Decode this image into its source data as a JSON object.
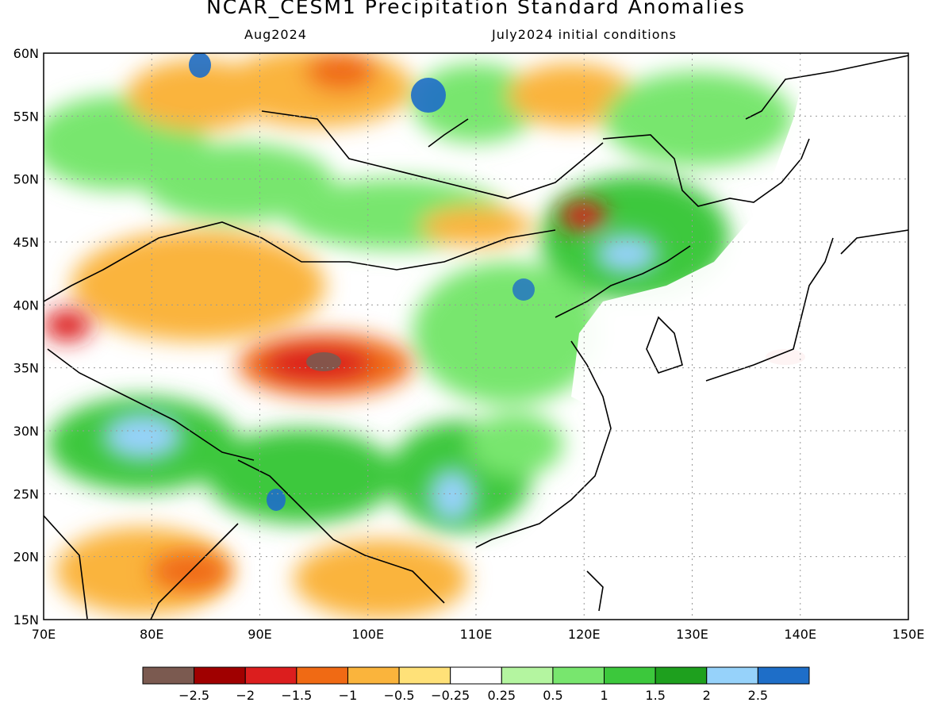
{
  "title": "NCAR_CESM1 Precipitation Standard Anomalies",
  "subtitle_left": "Aug2024",
  "subtitle_right": "July2024 initial conditions",
  "map": {
    "lon_range": [
      70,
      150
    ],
    "lat_range": [
      15,
      60
    ],
    "lon_ticks": [
      "70E",
      "80E",
      "90E",
      "100E",
      "110E",
      "120E",
      "130E",
      "140E",
      "150E"
    ],
    "lat_ticks": [
      "15N",
      "20N",
      "25N",
      "30N",
      "35N",
      "40N",
      "45N",
      "50N",
      "55N",
      "60N"
    ],
    "grid": "dotted",
    "regions": [
      {
        "name": "tibet-dry-core",
        "lon": 96,
        "lat": 35.3,
        "value": -2.7
      },
      {
        "name": "tibet-dry",
        "lon": 98,
        "lat": 35.5,
        "value": -2.1
      },
      {
        "name": "northern-india-wet",
        "lon": 83,
        "lat": 29.5,
        "value": 2.2
      },
      {
        "name": "bangladesh-wet",
        "lon": 91,
        "lat": 24.5,
        "value": 2.6
      },
      {
        "name": "south-china-wet",
        "lon": 108,
        "lat": 25,
        "value": 2.1
      },
      {
        "name": "northeast-china-wet",
        "lon": 126,
        "lat": 46,
        "value": 2.1
      },
      {
        "name": "inner-mongolia-dry",
        "lon": 120,
        "lat": 47,
        "value": -2
      },
      {
        "name": "siberia-dry",
        "lon": 97,
        "lat": 58,
        "value": -1.8
      },
      {
        "name": "baikal-wet",
        "lon": 106,
        "lat": 56,
        "value": 2.6
      },
      {
        "name": "kazakhstan-dry",
        "lon": 80,
        "lat": 42,
        "value": -0.9
      },
      {
        "name": "southeast-asia-dry",
        "lon": 100,
        "lat": 18,
        "value": -1.2
      },
      {
        "name": "india-south-dry",
        "lon": 80,
        "lat": 19,
        "value": -1.1
      },
      {
        "name": "japan-dry",
        "lon": 138,
        "lat": 35.5,
        "value": -1.6
      }
    ]
  },
  "colorbar": {
    "colors": [
      "#7b5a50",
      "#a00000",
      "#dc1e1e",
      "#f06a14",
      "#fab43c",
      "#ffe178",
      "#ffffff",
      "#b4f5a0",
      "#78e66e",
      "#3cc83c",
      "#1ea01e",
      "#96d2fa",
      "#1e6ec8"
    ],
    "labels": [
      "-2.5",
      "-2",
      "-1.5",
      "-1",
      "-0.5",
      "-0.25",
      "0.25",
      "0.5",
      "1",
      "1.5",
      "2",
      "2.5"
    ]
  }
}
